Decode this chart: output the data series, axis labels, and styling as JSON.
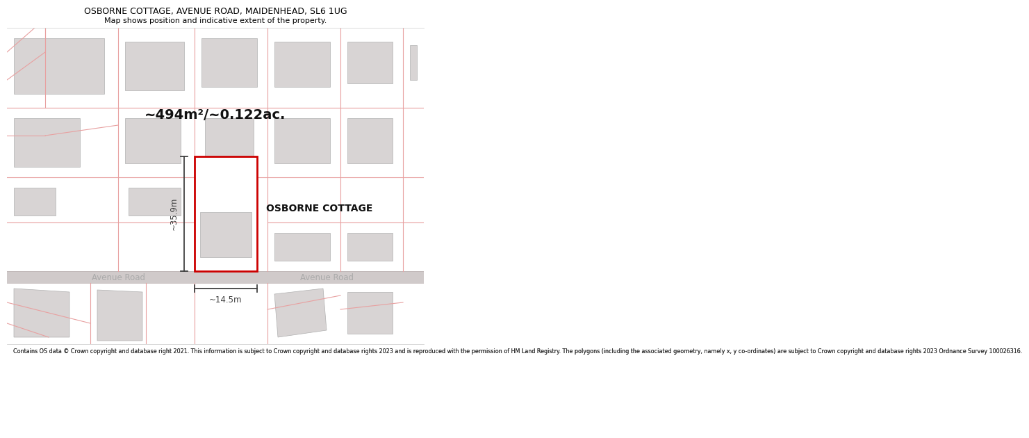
{
  "title": "OSBORNE COTTAGE, AVENUE ROAD, MAIDENHEAD, SL6 1UG",
  "subtitle": "Map shows position and indicative extent of the property.",
  "area_text": "~494m²/~0.122ac.",
  "property_label": "OSBORNE COTTAGE",
  "dim_height": "~35.9m",
  "dim_width": "~14.5m",
  "road_label_left": "Avenue Road",
  "road_label_right": "Avenue Road",
  "footer": "Contains OS data © Crown copyright and database right 2021. This information is subject to Crown copyright and database rights 2023 and is reproduced with the permission of HM Land Registry. The polygons (including the associated geometry, namely x, y co-ordinates) are subject to Crown copyright and database rights 2023 Ordnance Survey 100026316.",
  "bg_color": "#ffffff",
  "map_bg": "#ffffff",
  "road_color": "#c8c0c0",
  "building_fill": "#d8d4d4",
  "building_edge": "#b0b0b0",
  "parcel_line_color": "#e8a0a0",
  "plot_outline_color": "#cc0000",
  "dim_line_color": "#404040",
  "title_color": "#000000",
  "text_color": "#000000",
  "footer_color": "#333333",
  "road_text_color": "#aaaaaa"
}
